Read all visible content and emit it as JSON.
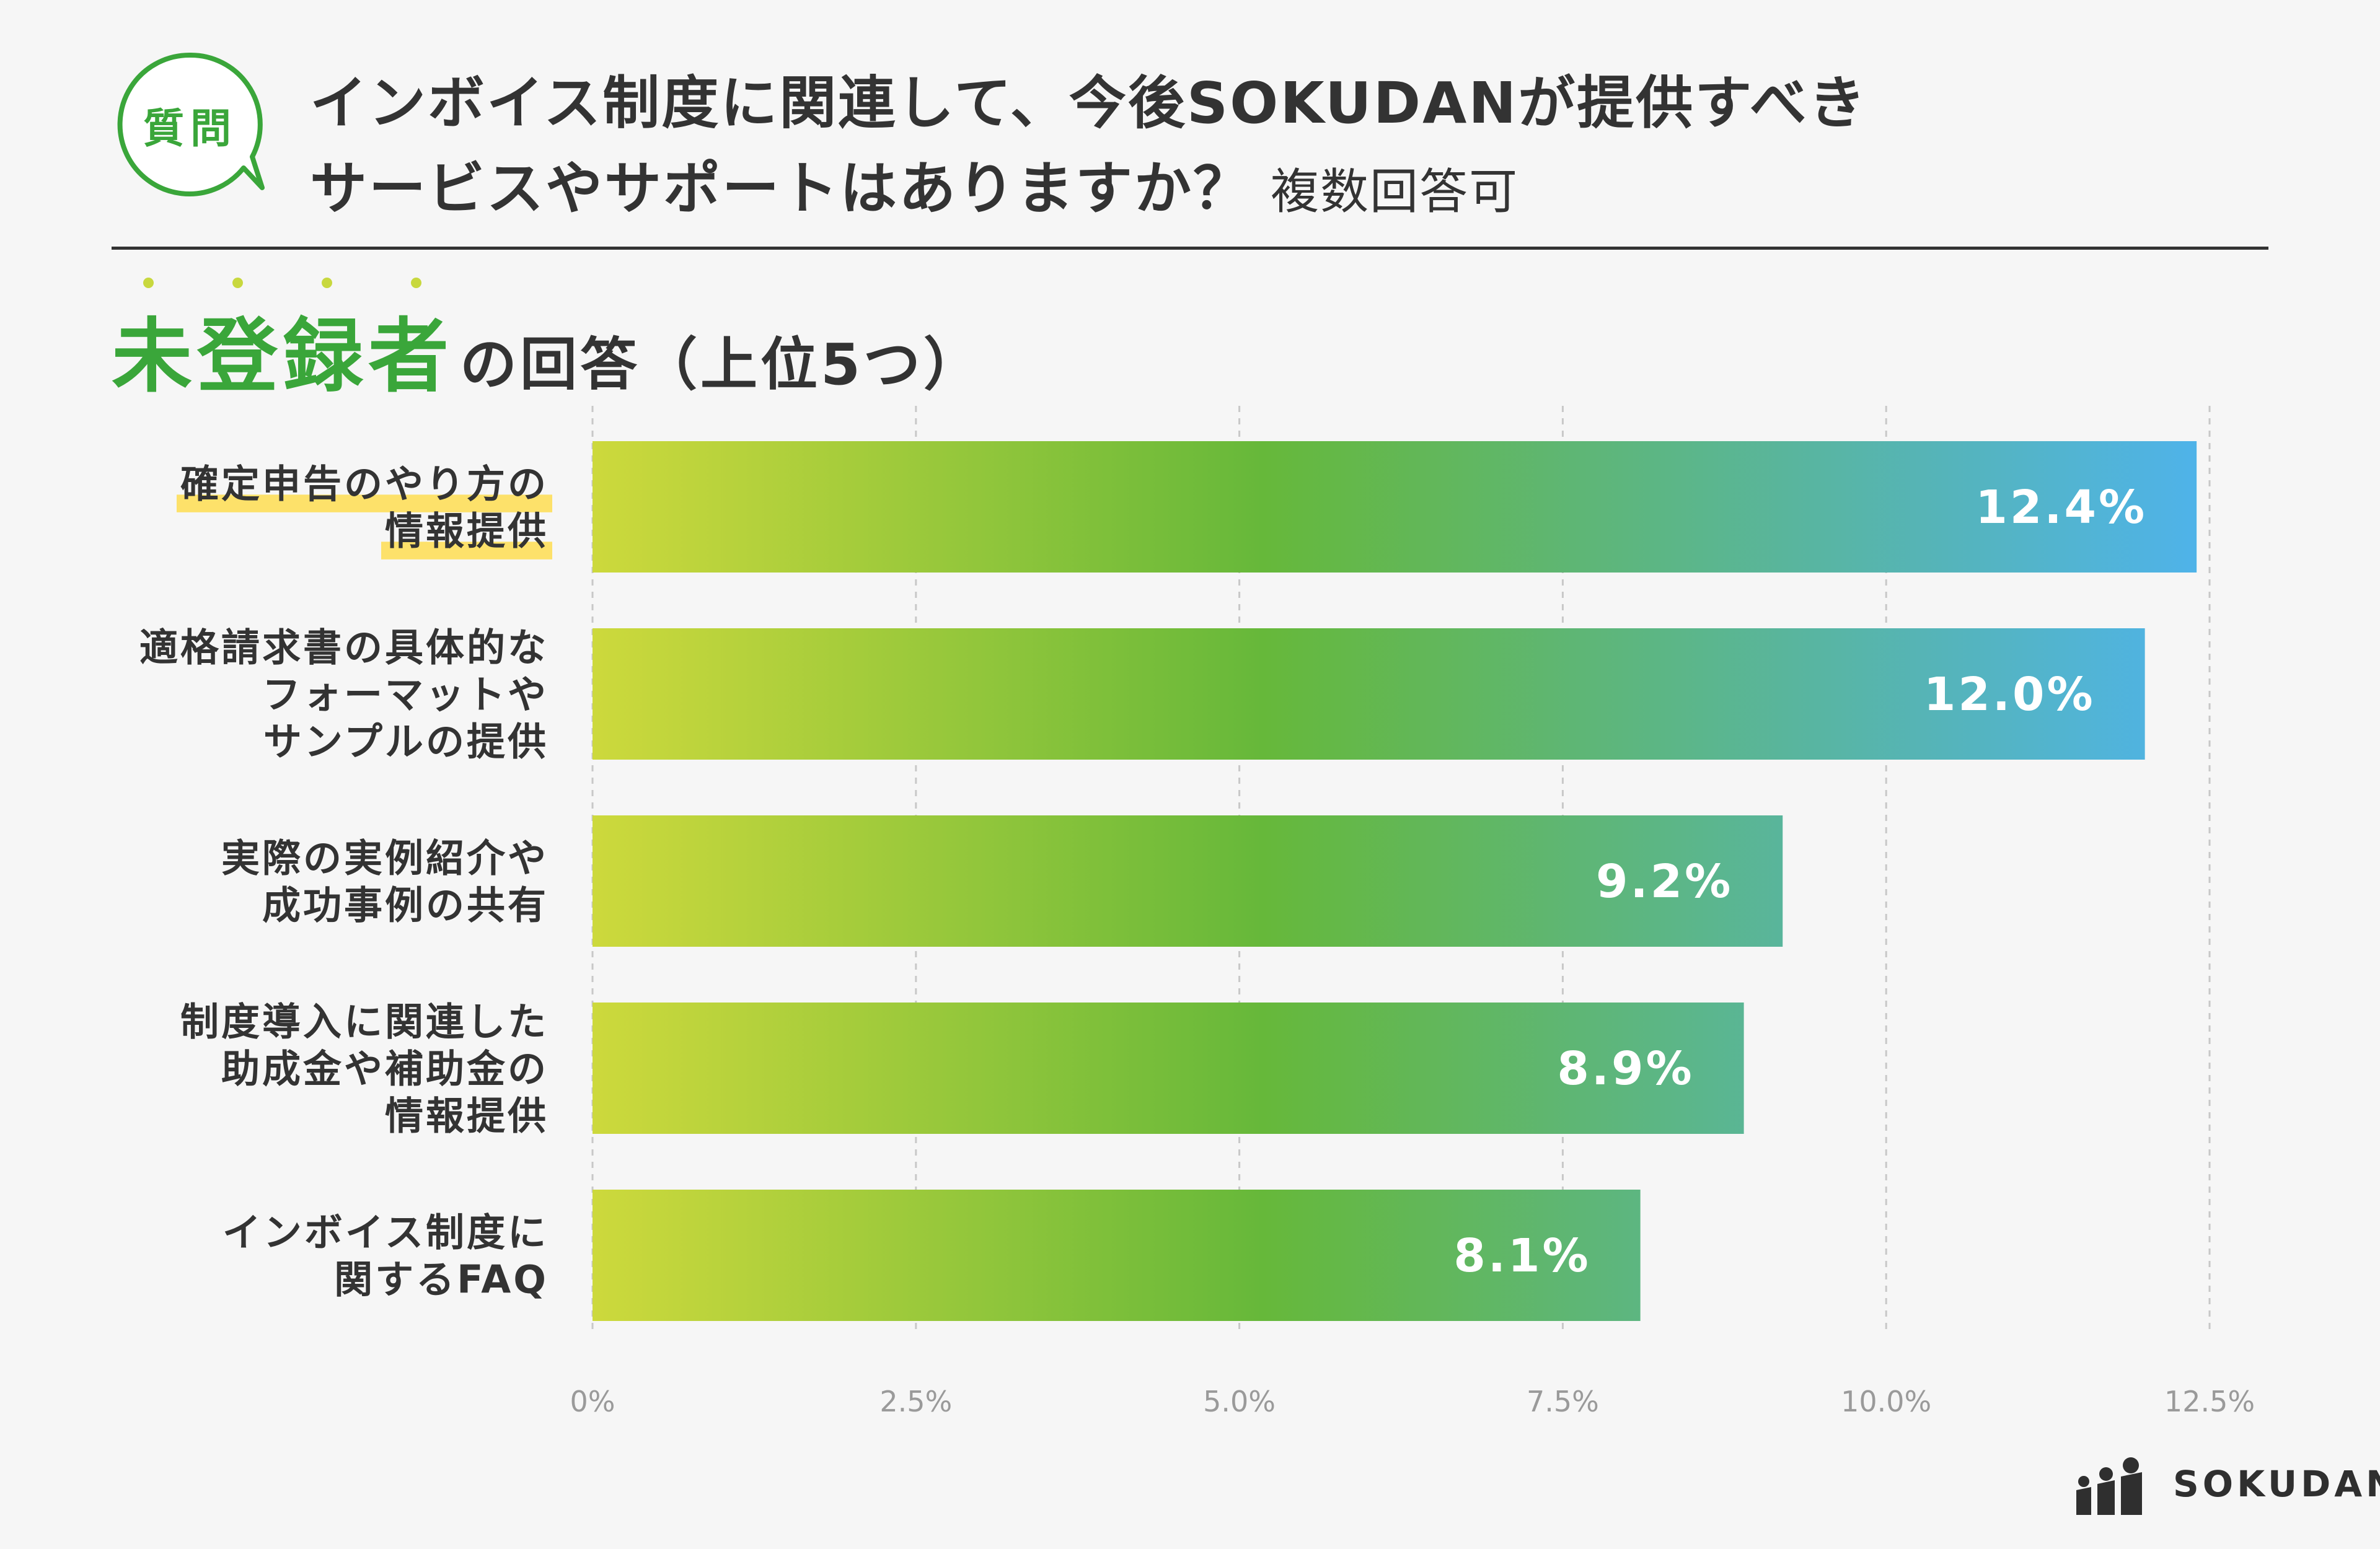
{
  "badge": {
    "label": "質問"
  },
  "title": {
    "line1": "インボイス制度に関連して、今後SOKUDANが提供すべき",
    "line2": "サービスやサポートはありますか？",
    "note": "複数回答可"
  },
  "section": {
    "highlight": "未登録者",
    "rest": "の回答（上位5つ）"
  },
  "chart_data": {
    "type": "bar",
    "orientation": "horizontal",
    "categories": [
      [
        "確定申告のやり方の",
        "情報提供"
      ],
      [
        "適格請求書の具体的な",
        "フォーマットや",
        "サンプルの提供"
      ],
      [
        "実際の実例紹介や",
        "成功事例の共有"
      ],
      [
        "制度導入に関連した",
        "助成金や補助金の",
        "情報提供"
      ],
      [
        "インボイス制度に",
        "関するFAQ"
      ]
    ],
    "values": [
      12.4,
      12.0,
      9.2,
      8.9,
      8.1
    ],
    "value_labels": [
      "12.4%",
      "12.0%",
      "9.2%",
      "8.9%",
      "8.1%"
    ],
    "highlighted_category": 0,
    "xlim": [
      0,
      12.5
    ],
    "xticks": [
      0,
      2.5,
      5.0,
      7.5,
      10.0,
      12.5
    ],
    "xtick_labels": [
      "0%",
      "2.5%",
      "5.0%",
      "7.5%",
      "10.0%",
      "12.5%"
    ],
    "grid": "vertical dashed",
    "colors": {
      "gradient_start": "#cdd93c",
      "gradient_mid": "#66b83a",
      "gradient_end": "#4fb3e8",
      "highlight": "#fde16a"
    }
  },
  "logo": {
    "text": "SOKUDAN"
  }
}
